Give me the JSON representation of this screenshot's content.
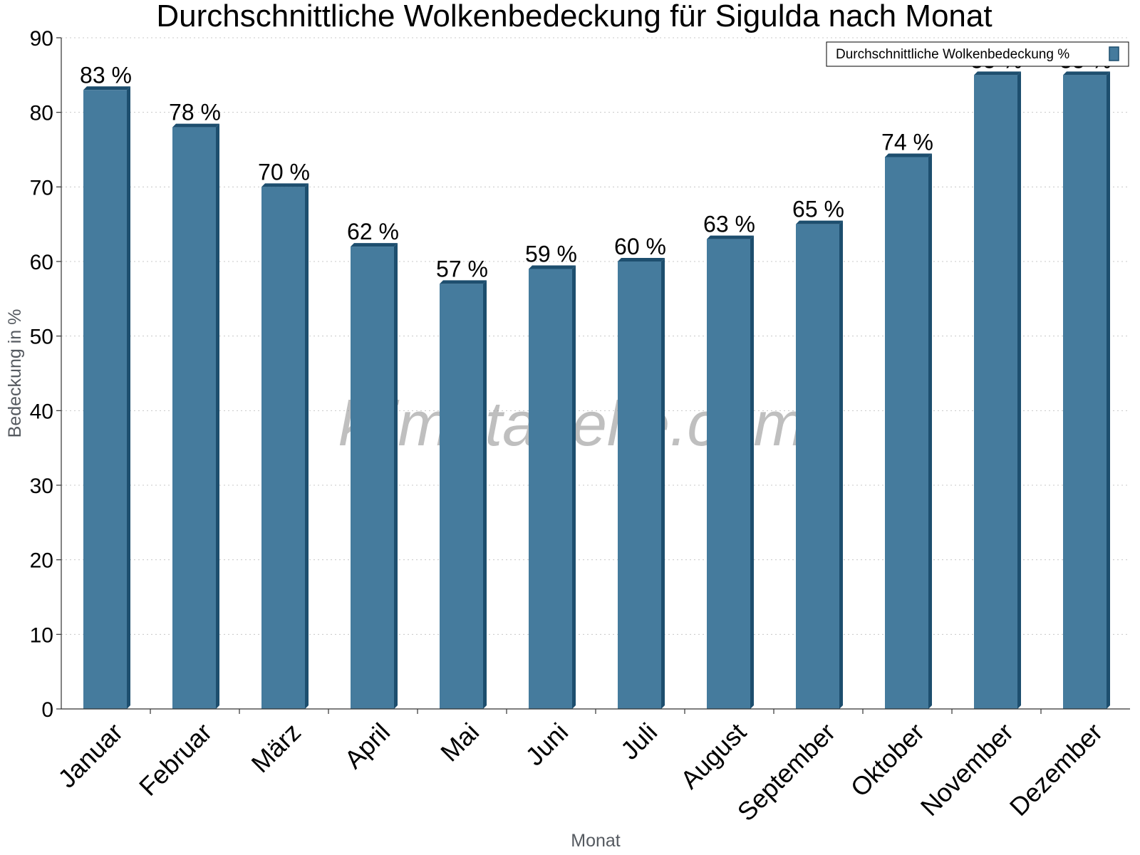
{
  "chart_data": {
    "type": "bar",
    "title": "Durchschnittliche Wolkenbedeckung für Sigulda nach Monat",
    "xlabel": "Monat",
    "ylabel": "Bedeckung in %",
    "ylim": [
      0,
      90
    ],
    "yticks": [
      0,
      10,
      20,
      30,
      40,
      50,
      60,
      70,
      80,
      90
    ],
    "grid": true,
    "legend_position": "top-right",
    "watermark": "klimatabelle.com",
    "value_suffix": " %",
    "categories": [
      "Januar",
      "Februar",
      "März",
      "April",
      "Mai",
      "Juni",
      "Juli",
      "August",
      "September",
      "Oktober",
      "November",
      "Dezember"
    ],
    "series": [
      {
        "name": "Durchschnittliche Wolkenbedeckung %",
        "values": [
          83,
          78,
          70,
          62,
          57,
          59,
          60,
          63,
          65,
          74,
          85,
          85
        ],
        "color": "#457b9d",
        "side_color": "#1d4e6e",
        "top_color": "#1d4e6e"
      }
    ]
  }
}
